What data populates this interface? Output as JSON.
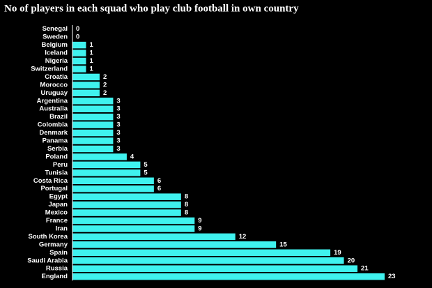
{
  "chart_data": {
    "type": "bar",
    "orientation": "horizontal",
    "title": "No of players in each squad who play club football in own country",
    "categories": [
      "Senegal",
      "Sweden",
      "Belgium",
      "Iceland",
      "Nigeria",
      "Switzerland",
      "Croatia",
      "Morocco",
      "Uruguay",
      "Argentina",
      "Australia",
      "Brazil",
      "Colombia",
      "Denmark",
      "Panama",
      "Serbia",
      "Poland",
      "Peru",
      "Tunisia",
      "Costa Rica",
      "Portugal",
      "Egypt",
      "Japan",
      "Mexico",
      "France",
      "Iran",
      "South Korea",
      "Germany",
      "Spain",
      "Saudi Arabia",
      "Russia",
      "England"
    ],
    "values": [
      0,
      0,
      1,
      1,
      1,
      1,
      2,
      2,
      2,
      3,
      3,
      3,
      3,
      3,
      3,
      3,
      4,
      5,
      5,
      6,
      6,
      8,
      8,
      8,
      9,
      9,
      12,
      15,
      19,
      20,
      21,
      23
    ],
    "color": "#3ff2ef"
  }
}
